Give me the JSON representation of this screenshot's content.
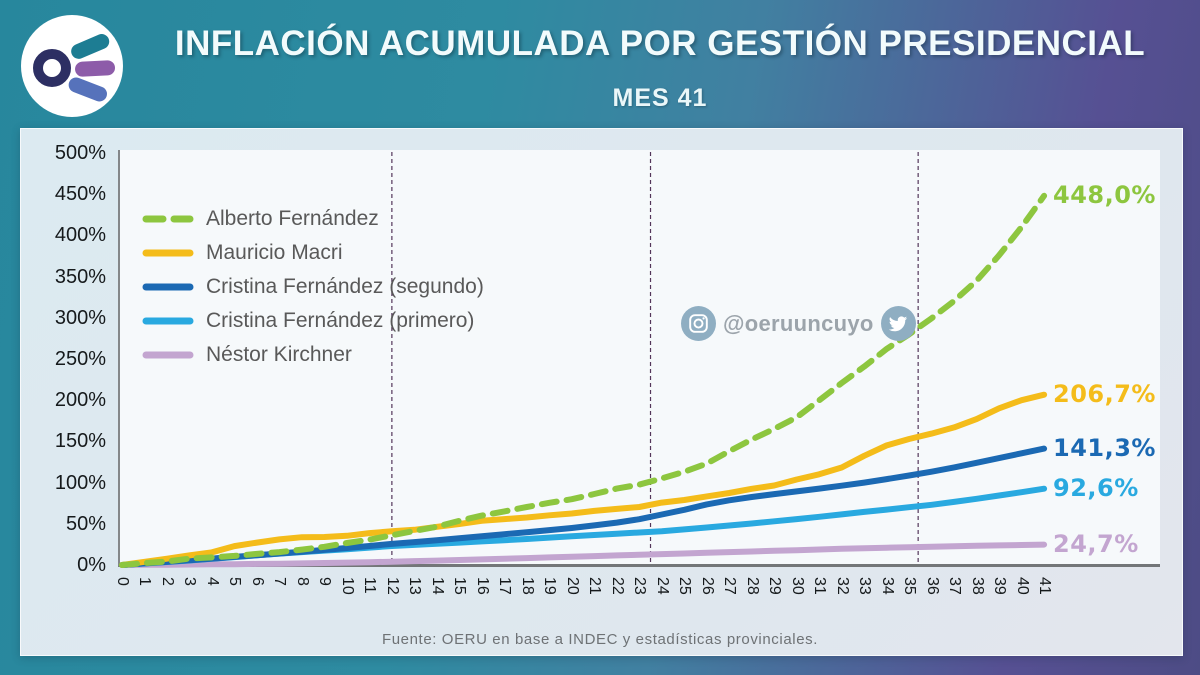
{
  "header": {
    "title": "INFLACIÓN ACUMULADA POR GESTIÓN PRESIDENCIAL",
    "subtitle": "MES 41"
  },
  "logo": {
    "name": "oeru-logo",
    "ring_color": "#2D2F63",
    "bar_colors": [
      "#1D7D93",
      "#8D5CA9",
      "#5672BB"
    ]
  },
  "watermark": {
    "handle": "@oeruuncuyo",
    "icons": [
      "instagram-icon",
      "twitter-icon"
    ],
    "icon_color": "#8FAEC2"
  },
  "footer": {
    "source": "Fuente:  OERU  en base a INDEC y estadísticas  provinciales."
  },
  "chart_data": {
    "type": "line",
    "title": "Inflación acumulada por gestión presidencial, mes 41",
    "xlabel": "",
    "ylabel": "",
    "x": [
      0,
      1,
      2,
      3,
      4,
      5,
      6,
      7,
      8,
      9,
      10,
      11,
      12,
      13,
      14,
      15,
      16,
      17,
      18,
      19,
      20,
      21,
      22,
      23,
      24,
      25,
      26,
      27,
      28,
      29,
      30,
      31,
      32,
      33,
      34,
      35,
      36,
      37,
      38,
      39,
      40,
      41
    ],
    "ylim": [
      0,
      500
    ],
    "y_ticks": [
      "0%",
      "50%",
      "100%",
      "150%",
      "200%",
      "250%",
      "300%",
      "350%",
      "400%",
      "450%",
      "500%"
    ],
    "grid": false,
    "legend_position": "inside-top-left",
    "month_markers": [
      12,
      23.5,
      35.4
    ],
    "marker_color": "#53365A",
    "series": [
      {
        "name": "Alberto Fernández",
        "color": "#8DC63F",
        "dashed": true,
        "end_label": "448,0%",
        "values": [
          0,
          2.3,
          4.3,
          7.8,
          9.4,
          11.0,
          13.5,
          15.6,
          18.7,
          22.1,
          26.7,
          30.8,
          36.0,
          41.4,
          46.5,
          53.6,
          59.9,
          65.1,
          70.4,
          75.5,
          79.9,
          86.2,
          92.7,
          97.6,
          105.1,
          113.1,
          123.1,
          138.1,
          152.3,
          165.2,
          179.2,
          199.9,
          220.9,
          240.8,
          262.3,
          280.0,
          299.4,
          320.5,
          345.0,
          375.8,
          410.2,
          448.0
        ]
      },
      {
        "name": "Mauricio Macri",
        "color": "#F4BC1A",
        "dashed": false,
        "end_label": "206,7%",
        "values": [
          0,
          3.9,
          7.7,
          11.7,
          15.4,
          22.9,
          27.2,
          31.1,
          33.7,
          34.0,
          35.4,
          38.7,
          40.9,
          42.7,
          46.3,
          49.8,
          53.7,
          55.7,
          57.6,
          60.3,
          62.5,
          65.6,
          68.1,
          70.4,
          75.7,
          78.9,
          83.2,
          87.4,
          92.5,
          96.5,
          103.8,
          110.1,
          118.3,
          132.5,
          145.1,
          152.9,
          159.5,
          167.0,
          177.1,
          190.2,
          200.0,
          206.7
        ]
      },
      {
        "name": "Cristina Fernández (segundo)",
        "color": "#1B69B3",
        "dashed": false,
        "end_label": "141,3%",
        "values": [
          0,
          1.9,
          3.8,
          5.8,
          7.8,
          9.8,
          11.9,
          14.0,
          16.1,
          18.3,
          20.6,
          23.0,
          25.6,
          27.8,
          30.1,
          32.5,
          35.0,
          37.4,
          39.8,
          42.3,
          44.9,
          48.0,
          51.5,
          55.6,
          61.3,
          67.0,
          73.5,
          78.5,
          82.5,
          86.0,
          89.3,
          92.7,
          96.2,
          100.0,
          104.2,
          108.6,
          113.2,
          118.5,
          124.0,
          129.7,
          135.5,
          141.3
        ]
      },
      {
        "name": "Cristina Fernández (primero)",
        "color": "#29A9E0",
        "dashed": false,
        "end_label": "92,6%",
        "values": [
          0,
          1.8,
          3.6,
          5.5,
          7.5,
          9.6,
          11.8,
          13.8,
          15.7,
          17.5,
          19.2,
          21.1,
          23.0,
          24.4,
          25.8,
          27.2,
          28.7,
          30.1,
          31.6,
          33.2,
          34.8,
          36.4,
          38.0,
          39.5,
          41.0,
          43.2,
          45.5,
          47.9,
          50.4,
          53.0,
          55.7,
          58.5,
          61.4,
          64.4,
          67.2,
          70.1,
          73.0,
          76.6,
          80.4,
          84.3,
          88.4,
          92.6
        ]
      },
      {
        "name": "Néstor Kirchner",
        "color": "#C3A5D0",
        "dashed": false,
        "end_label": "24,7%",
        "values": [
          0,
          0.2,
          0.4,
          0.6,
          0.8,
          1.0,
          1.3,
          1.6,
          2.0,
          2.4,
          2.9,
          3.4,
          4.0,
          4.7,
          5.4,
          6.1,
          6.8,
          7.6,
          8.4,
          9.2,
          10.0,
          10.8,
          11.6,
          12.4,
          13.2,
          14.0,
          14.8,
          15.6,
          16.4,
          17.2,
          18.0,
          18.8,
          19.6,
          20.3,
          21.0,
          21.6,
          22.2,
          22.8,
          23.3,
          23.8,
          24.3,
          24.7
        ]
      }
    ]
  }
}
